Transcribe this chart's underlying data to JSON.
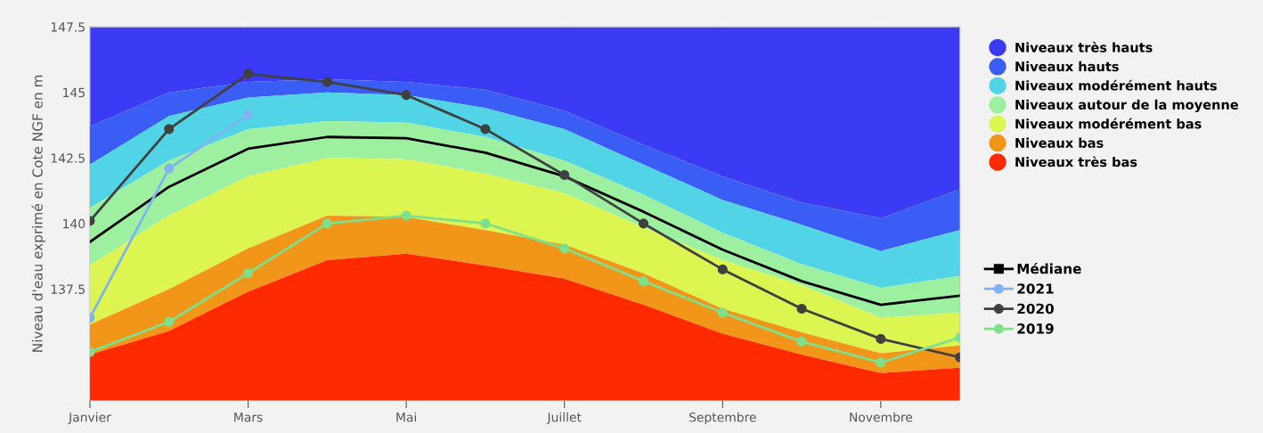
{
  "chart_data": {
    "type": "area",
    "ylabel": "Niveau d'eau exprimé en Cote NGF en m",
    "categories": [
      "Janvier",
      null,
      "Mars",
      null,
      "Mai",
      null,
      "Juillet",
      null,
      "Septembre",
      null,
      "Novembre",
      null
    ],
    "ylim": [
      133.25,
      147.5
    ],
    "yticks": [
      137.5,
      140,
      142.5,
      145,
      147.5
    ],
    "grid": "x",
    "legend": "right",
    "series": [
      {
        "name": "Niveaux très hauts",
        "color": "#3b3bf5",
        "values": [
          147.5,
          147.5,
          147.5,
          147.5,
          147.5,
          147.5,
          147.5,
          147.5,
          147.5,
          147.5,
          147.5,
          147.5
        ]
      },
      {
        "name": "Niveaux hauts",
        "color": "#3a5ef5",
        "values": [
          143.7,
          145.0,
          145.4,
          145.5,
          145.4,
          145.1,
          144.3,
          143.0,
          141.8,
          140.8,
          140.2,
          141.3
        ]
      },
      {
        "name": "Niveaux modérément hauts",
        "color": "#50d4e6",
        "values": [
          142.25,
          144.1,
          144.8,
          145.0,
          144.9,
          144.4,
          143.6,
          142.25,
          140.9,
          139.95,
          138.95,
          139.75
        ]
      },
      {
        "name": "Niveaux autour de la moyenne",
        "color": "#9df0a0",
        "values": [
          140.6,
          142.4,
          143.6,
          143.9,
          143.85,
          143.3,
          142.4,
          141.1,
          139.65,
          138.45,
          137.55,
          138.0
        ]
      },
      {
        "name": "Niveaux modérément bas",
        "color": "#dcf550",
        "values": [
          138.4,
          140.3,
          141.8,
          142.5,
          142.45,
          141.9,
          141.15,
          139.85,
          138.6,
          137.65,
          136.4,
          136.6
        ]
      },
      {
        "name": "Niveaux bas",
        "color": "#f2961a",
        "values": [
          136.15,
          137.5,
          139.05,
          140.3,
          140.25,
          139.75,
          139.2,
          138.1,
          136.75,
          135.85,
          135.05,
          135.35
        ]
      },
      {
        "name": "Niveaux très bas",
        "color": "#ff2a00",
        "values": [
          135.0,
          135.9,
          137.4,
          138.6,
          138.85,
          138.4,
          137.9,
          136.9,
          135.8,
          135.0,
          134.3,
          134.5
        ]
      },
      {
        "name": "Médiane",
        "type": "line",
        "color": "#000000",
        "marker": "none",
        "values": [
          139.3,
          141.4,
          142.85,
          143.3,
          143.25,
          142.7,
          141.8,
          140.45,
          139.0,
          137.8,
          136.9,
          137.25
        ]
      },
      {
        "name": "2021",
        "type": "line",
        "color": "#7fb2f0",
        "marker": "circle",
        "values": [
          136.4,
          142.1,
          144.15,
          null,
          null,
          null,
          null,
          null,
          null,
          null,
          null,
          null
        ]
      },
      {
        "name": "2020",
        "type": "line",
        "color": "#404040",
        "marker": "circle",
        "values": [
          140.1,
          143.6,
          145.7,
          145.4,
          144.9,
          143.6,
          141.85,
          140.0,
          138.25,
          136.75,
          135.6,
          134.9
        ]
      },
      {
        "name": "2019",
        "type": "line",
        "color": "#7ee08a",
        "marker": "circle",
        "values": [
          135.1,
          136.25,
          138.1,
          140.0,
          140.3,
          140.0,
          139.05,
          137.8,
          136.6,
          135.5,
          134.7,
          135.65
        ]
      }
    ]
  }
}
